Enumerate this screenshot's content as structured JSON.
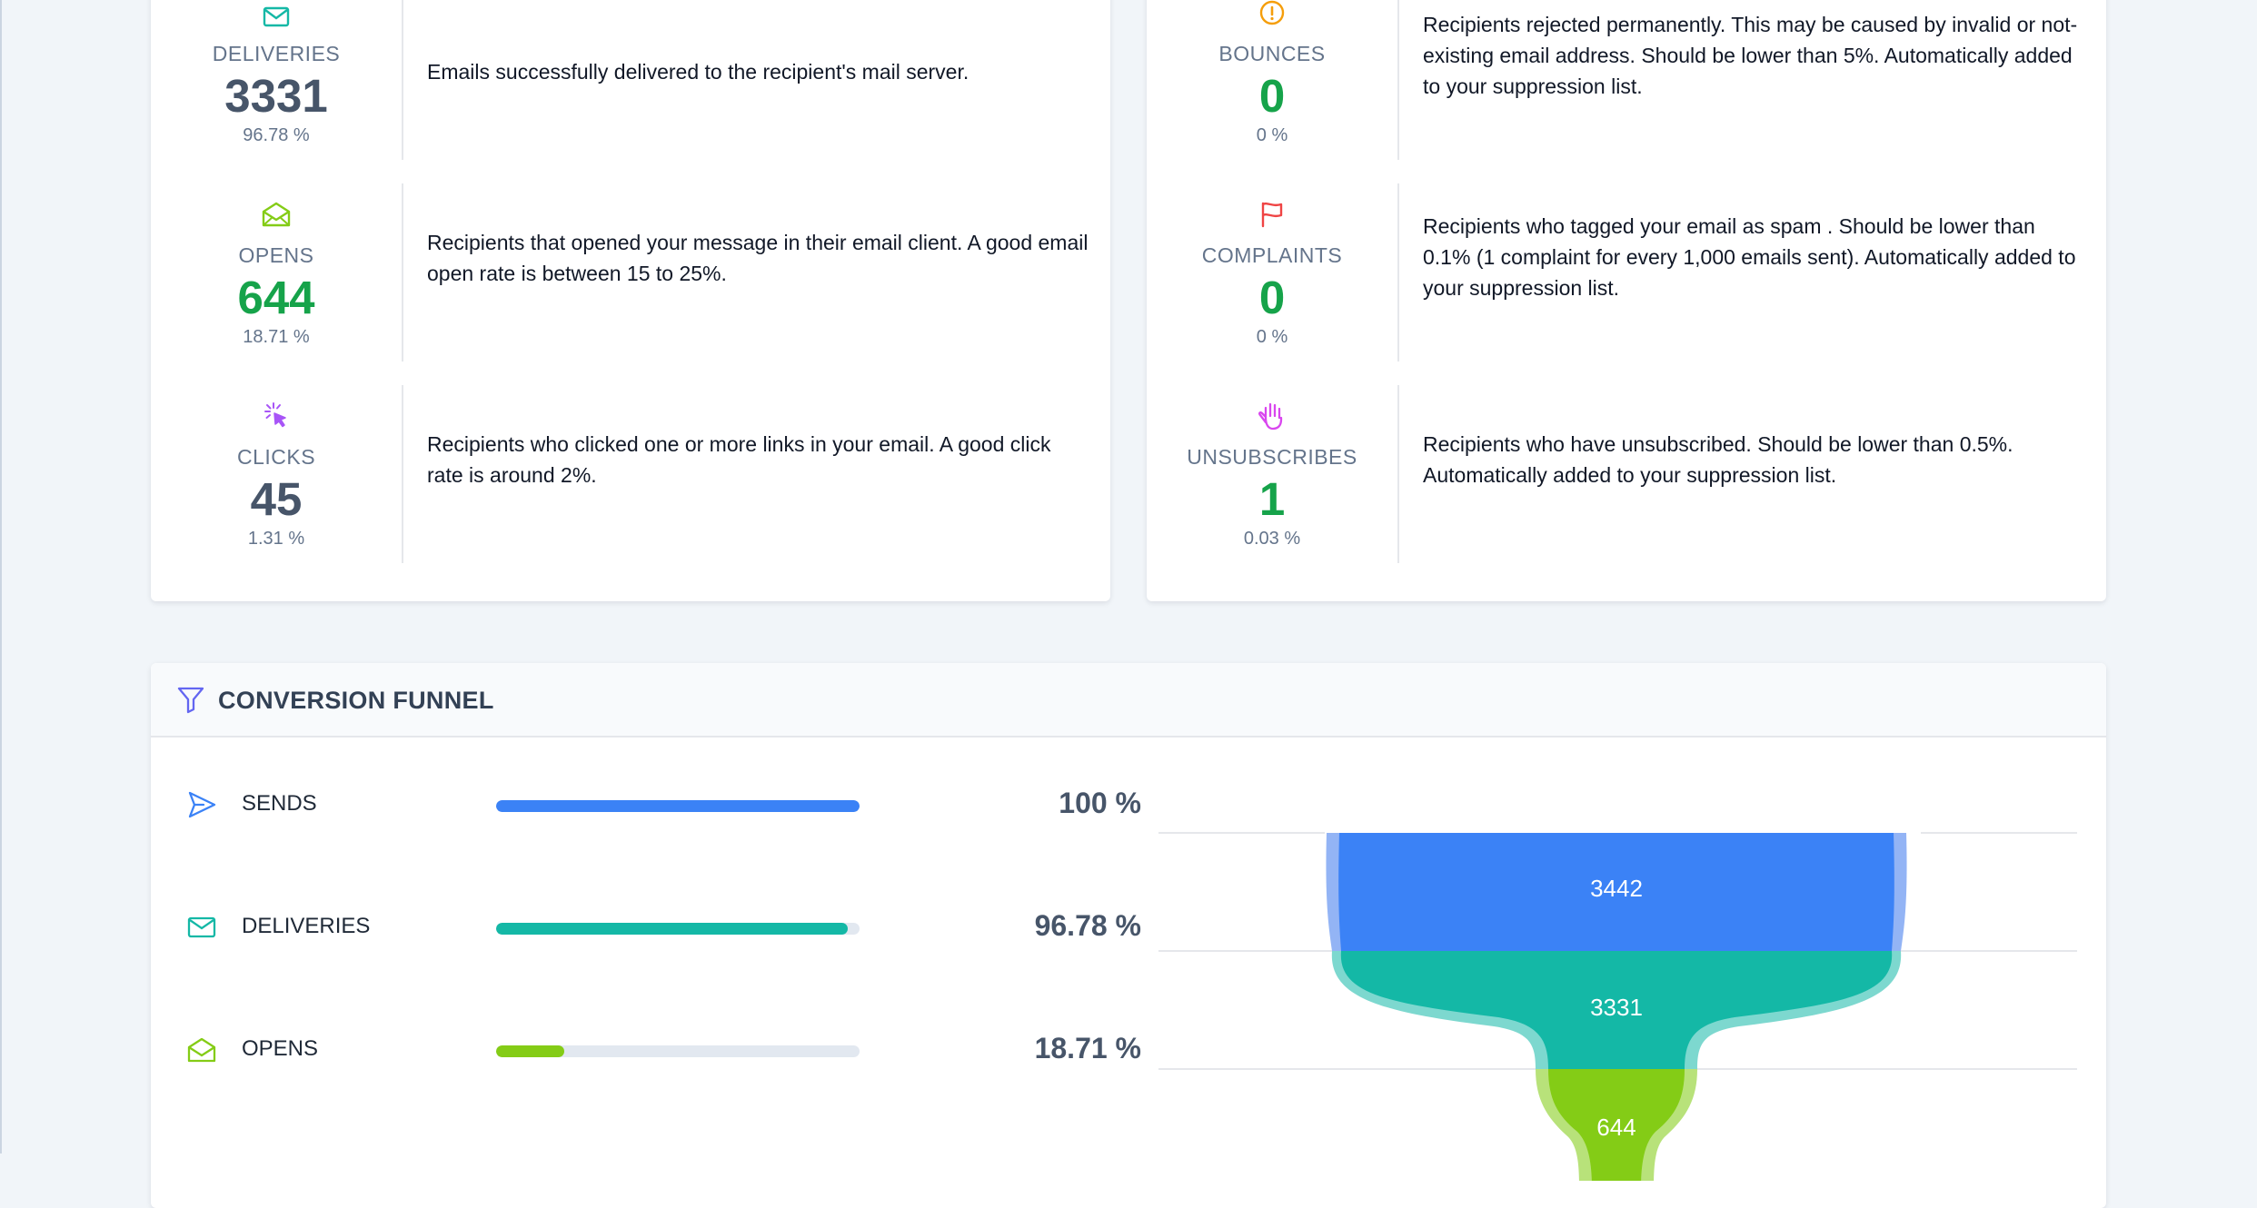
{
  "delivery_stats": [
    {
      "key": "deliveries",
      "label": "DELIVERIES",
      "value": "3331",
      "percent": "96.78 %",
      "description": "Emails successfully delivered to the recipient's mail server.",
      "icon": "envelope-icon",
      "icon_color": "#14b8a6",
      "value_color": "#475569"
    },
    {
      "key": "opens",
      "label": "OPENS",
      "value": "644",
      "percent": "18.71 %",
      "description": "Recipients that opened your message in their email client. A good email open rate is between 15 to 25%.",
      "icon": "envelope-open-icon",
      "icon_color": "#84cc16",
      "value_color": "#16a34a"
    },
    {
      "key": "clicks",
      "label": "CLICKS",
      "value": "45",
      "percent": "1.31 %",
      "description": "Recipients who clicked one or more links in your email. A good click rate is around 2%.",
      "icon": "cursor-click-icon",
      "icon_color": "#a855f7",
      "value_color": "#475569"
    }
  ],
  "problem_stats": [
    {
      "key": "bounces",
      "label": "BOUNCES",
      "value": "0",
      "percent": "0 %",
      "description": "Recipients rejected permanently. This may be caused by invalid or not-existing email address. Should be lower than 5%. Automatically added to your suppression list.",
      "icon": "alert-circle-icon",
      "icon_color": "#f59e0b",
      "value_color": "#16a34a"
    },
    {
      "key": "complaints",
      "label": "COMPLAINTS",
      "value": "0",
      "percent": "0 %",
      "description": "Recipients who tagged your email as spam . Should be lower than 0.1% (1 complaint for every 1,000 emails sent). Automatically added to your suppression list.",
      "icon": "flag-icon",
      "icon_color": "#ef4444",
      "value_color": "#16a34a"
    },
    {
      "key": "unsubscribes",
      "label": "UNSUBSCRIBES",
      "value": "1",
      "percent": "0.03 %",
      "description": "Recipients who have unsubscribed. Should be lower than 0.5%. Automatically added to your suppression list.",
      "icon": "hand-icon",
      "icon_color": "#d946ef",
      "value_color": "#16a34a"
    }
  ],
  "funnel": {
    "title": "CONVERSION FUNNEL",
    "title_icon": "funnel-icon",
    "title_icon_color": "#6366f1",
    "rows": [
      {
        "label": "SENDS",
        "percent_text": "100 %",
        "fraction": 1.0,
        "color": "#3b82f6",
        "icon": "paper-plane-icon"
      },
      {
        "label": "DELIVERIES",
        "percent_text": "96.78 %",
        "fraction": 0.9678,
        "color": "#14b8a6",
        "icon": "envelope-icon"
      },
      {
        "label": "OPENS",
        "percent_text": "18.71 %",
        "fraction": 0.1871,
        "color": "#84cc16",
        "icon": "envelope-open-icon"
      }
    ],
    "chart_values": [
      {
        "value": "3442",
        "color": "#3b82f6",
        "outer_color": "#93b4f5"
      },
      {
        "value": "3331",
        "color": "#14b8a6",
        "outer_color": "#7dd8cf"
      },
      {
        "value": "644",
        "color": "#84cc16",
        "outer_color": "#b8e27a"
      },
      {
        "value": "",
        "color": "#a855f7",
        "outer_color": "#d2a6f8"
      }
    ]
  }
}
